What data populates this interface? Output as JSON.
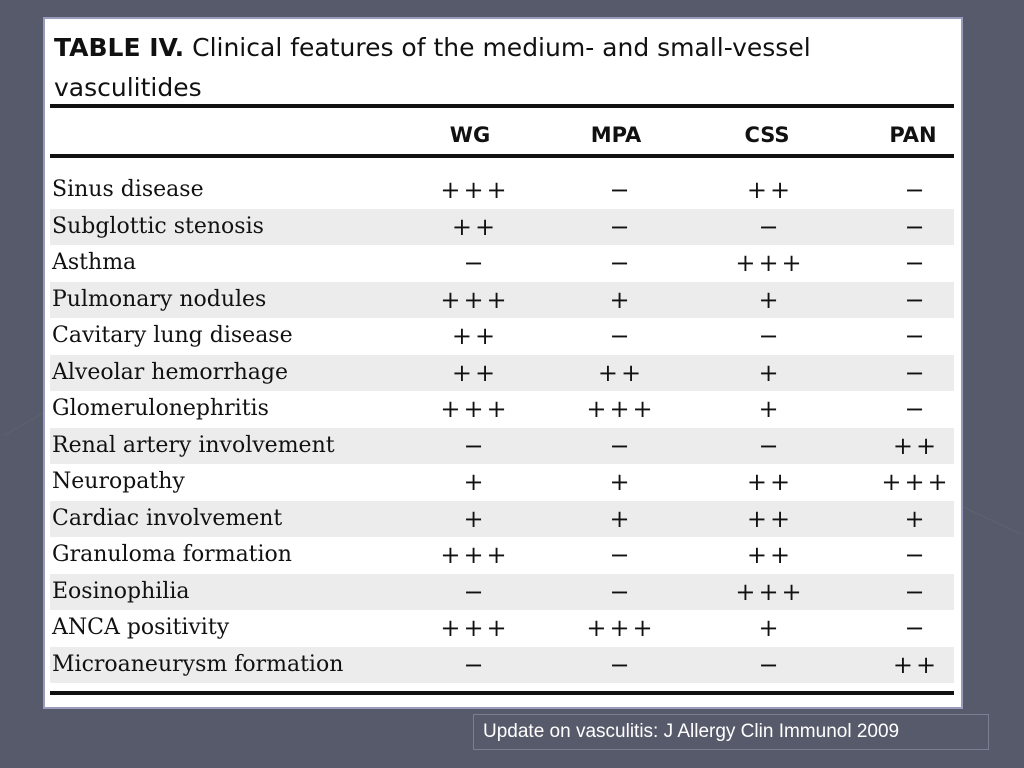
{
  "slide": {
    "table_label": "TABLE IV.",
    "table_title": "Clinical features of the medium- and small-vessel vasculitides",
    "columns": [
      "WG",
      "MPA",
      "CSS",
      "PAN"
    ],
    "rows": [
      {
        "feature": "Sinus disease",
        "values": [
          "+++",
          "−",
          "++",
          "−"
        ]
      },
      {
        "feature": "Subglottic stenosis",
        "values": [
          "++",
          "−",
          "−",
          "−"
        ]
      },
      {
        "feature": "Asthma",
        "values": [
          "−",
          "−",
          "+++",
          "−"
        ]
      },
      {
        "feature": "Pulmonary nodules",
        "values": [
          "+++",
          "+",
          "+",
          "−"
        ]
      },
      {
        "feature": "Cavitary lung disease",
        "values": [
          "++",
          "−",
          "−",
          "−"
        ]
      },
      {
        "feature": "Alveolar hemorrhage",
        "values": [
          "++",
          "++",
          "+",
          "−"
        ]
      },
      {
        "feature": "Glomerulonephritis",
        "values": [
          "+++",
          "+++",
          "+",
          "−"
        ]
      },
      {
        "feature": "Renal artery involvement",
        "values": [
          "−",
          "−",
          "−",
          "++"
        ]
      },
      {
        "feature": "Neuropathy",
        "values": [
          "+",
          "+",
          "++",
          "+++"
        ]
      },
      {
        "feature": "Cardiac involvement",
        "values": [
          "+",
          "+",
          "++",
          "+"
        ]
      },
      {
        "feature": "Granuloma formation",
        "values": [
          "+++",
          "−",
          "++",
          "−"
        ]
      },
      {
        "feature": "Eosinophilia",
        "values": [
          "−",
          "−",
          "+++",
          "−"
        ]
      },
      {
        "feature": "ANCA positivity",
        "values": [
          "+++",
          "+++",
          "+",
          "−"
        ]
      },
      {
        "feature": "Microaneurysm formation",
        "values": [
          "−",
          "−",
          "−",
          "++"
        ]
      }
    ],
    "caption": "Update on vasculitis: J Allergy Clin Immunol 2009"
  },
  "colors": {
    "background": "#565a6a",
    "panel_border": "#9b9bbd",
    "row_shade": "#ececec"
  }
}
